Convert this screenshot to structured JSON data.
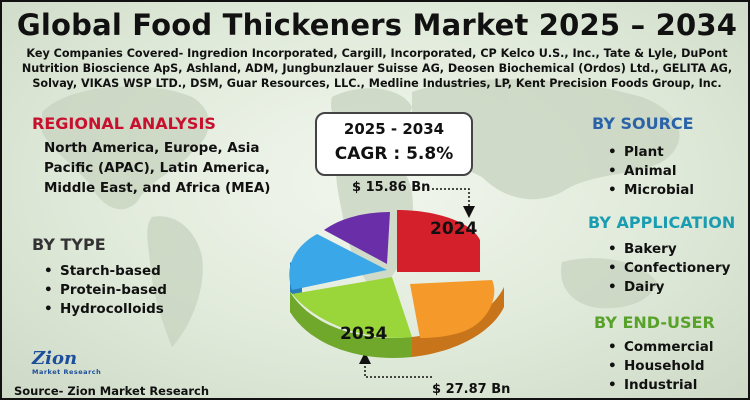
{
  "title": "Global Food Thickeners Market 2025 – 2034",
  "companies": "Key Companies Covered- Ingredion Incorporated, Cargill, Incorporated, CP Kelco U.S., Inc., Tate & Lyle, DuPont Nutrition Bioscience ApS, Ashland, ADM, Jungbunzlauer Suisse AG, Deosen Biochemical (Ordos) Ltd., GELITA AG, Solvay, VIKAS WSP LTD., DSM, Guar Resources, LLC., Medline Industries, LP, Kent Precision Foods Group, Inc.",
  "regional": {
    "heading": "REGIONAL ANALYSIS",
    "text": "North America, Europe, Asia Pacific (APAC), Latin America, Middle East, and Africa (MEA)"
  },
  "by_type": {
    "heading": "BY TYPE",
    "items": [
      "Starch-based",
      "Protein-based",
      "Hydrocolloids"
    ]
  },
  "cagr_box": {
    "years": "2025 - 2034",
    "cagr": "CAGR : 5.8%"
  },
  "value_2024": "$ 15.86 Bn",
  "value_2034": "$ 27.87 Bn",
  "pie_label_2024": "2024",
  "pie_label_2034": "2034",
  "by_source": {
    "heading": "BY SOURCE",
    "items": [
      "Plant",
      "Animal",
      "Microbial"
    ]
  },
  "by_application": {
    "heading": "BY APPLICATION",
    "items": [
      "Bakery",
      "Confectionery",
      "Dairy"
    ]
  },
  "by_end_user": {
    "heading": "BY END-USER",
    "items": [
      "Commercial",
      "Household",
      "Industrial"
    ]
  },
  "logo": {
    "name": "Zion",
    "sub": "Market Research"
  },
  "source": "Source- Zion Market Research",
  "colors": {
    "red_heading": "#c8102e",
    "blue_heading": "#2a63a8",
    "teal_heading": "#1a9db0",
    "green_heading": "#58a12a",
    "pie_red": "#d3202a",
    "pie_orange": "#f59a2a",
    "pie_green": "#9ad63a",
    "pie_blue": "#3aa7e8",
    "pie_purple": "#6a2fa8"
  }
}
